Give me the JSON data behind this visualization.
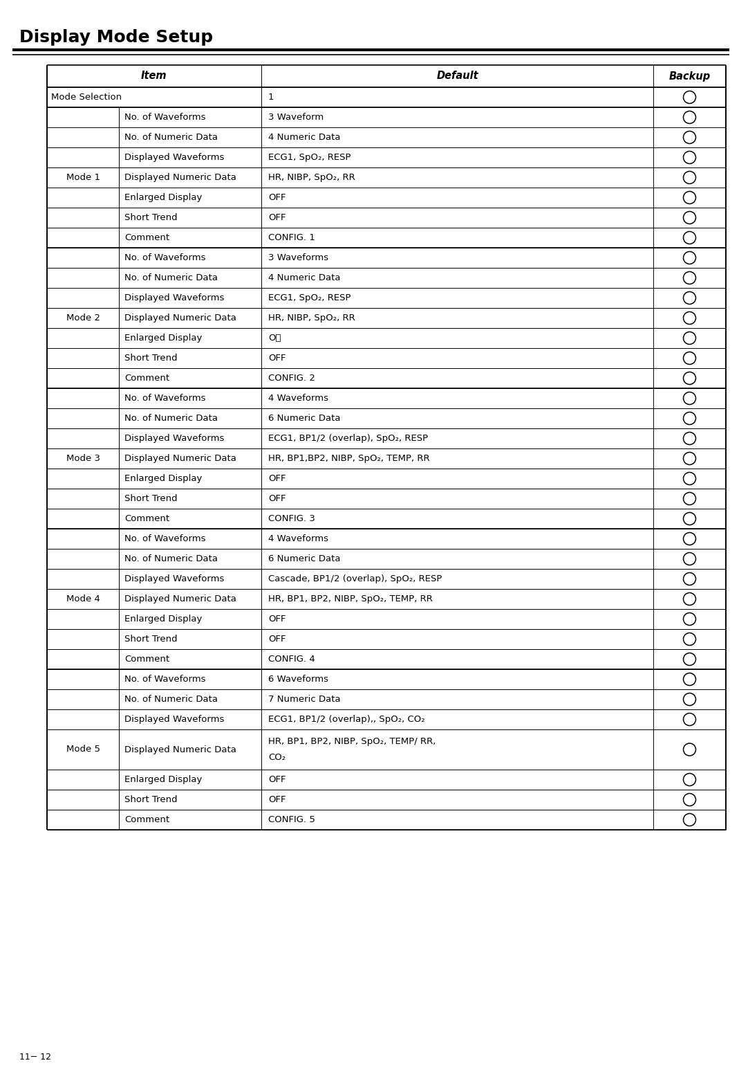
{
  "title": "Display Mode Setup",
  "page_number": "11− 12",
  "header": [
    "Item",
    "Default",
    "Backup"
  ],
  "table_data": [
    {
      "col0": "Mode Selection",
      "col1": "",
      "col2": "1",
      "span_col0": true,
      "tall_row": false
    },
    {
      "col0": "Mode 1",
      "col1": "No. of Waveforms",
      "col2": "3 Waveform",
      "span_col0": false,
      "tall_row": false
    },
    {
      "col0": "",
      "col1": "No. of Numeric Data",
      "col2": "4 Numeric Data",
      "span_col0": false,
      "tall_row": false
    },
    {
      "col0": "",
      "col1": "Displayed Waveforms",
      "col2": "ECG1, SpO₂, RESP",
      "span_col0": false,
      "tall_row": false
    },
    {
      "col0": "",
      "col1": "Displayed Numeric Data",
      "col2": "HR, NIBP, SpO₂, RR",
      "span_col0": false,
      "tall_row": false
    },
    {
      "col0": "",
      "col1": "Enlarged Display",
      "col2": "OFF",
      "span_col0": false,
      "tall_row": false
    },
    {
      "col0": "",
      "col1": "Short Trend",
      "col2": "OFF",
      "span_col0": false,
      "tall_row": false
    },
    {
      "col0": "",
      "col1": "Comment",
      "col2": "CONFIG. 1",
      "span_col0": false,
      "tall_row": false
    },
    {
      "col0": "Mode 2",
      "col1": "No. of Waveforms",
      "col2": "3 Waveforms",
      "span_col0": false,
      "tall_row": false
    },
    {
      "col0": "",
      "col1": "No. of Numeric Data",
      "col2": "4 Numeric Data",
      "span_col0": false,
      "tall_row": false
    },
    {
      "col0": "",
      "col1": "Displayed Waveforms",
      "col2": "ECG1, SpO₂, RESP",
      "span_col0": false,
      "tall_row": false
    },
    {
      "col0": "",
      "col1": "Displayed Numeric Data",
      "col2": "HR, NIBP, SpO₂, RR",
      "span_col0": false,
      "tall_row": false
    },
    {
      "col0": "",
      "col1": "Enlarged Display",
      "col2": "OＮ",
      "span_col0": false,
      "tall_row": false
    },
    {
      "col0": "",
      "col1": "Short Trend",
      "col2": "OFF",
      "span_col0": false,
      "tall_row": false
    },
    {
      "col0": "",
      "col1": "Comment",
      "col2": "CONFIG. 2",
      "span_col0": false,
      "tall_row": false
    },
    {
      "col0": "Mode 3",
      "col1": "No. of Waveforms",
      "col2": "4 Waveforms",
      "span_col0": false,
      "tall_row": false
    },
    {
      "col0": "",
      "col1": "No. of Numeric Data",
      "col2": "6 Numeric Data",
      "span_col0": false,
      "tall_row": false
    },
    {
      "col0": "",
      "col1": "Displayed Waveforms",
      "col2": "ECG1, BP1/2 (overlap), SpO₂, RESP",
      "span_col0": false,
      "tall_row": false
    },
    {
      "col0": "",
      "col1": "Displayed Numeric Data",
      "col2": "HR, BP1,BP2, NIBP, SpO₂, TEMP, RR",
      "span_col0": false,
      "tall_row": false
    },
    {
      "col0": "",
      "col1": "Enlarged Display",
      "col2": "OFF",
      "span_col0": false,
      "tall_row": false
    },
    {
      "col0": "",
      "col1": "Short Trend",
      "col2": "OFF",
      "span_col0": false,
      "tall_row": false
    },
    {
      "col0": "",
      "col1": "Comment",
      "col2": "CONFIG. 3",
      "span_col0": false,
      "tall_row": false
    },
    {
      "col0": "Mode 4",
      "col1": "No. of Waveforms",
      "col2": "4 Waveforms",
      "span_col0": false,
      "tall_row": false
    },
    {
      "col0": "",
      "col1": "No. of Numeric Data",
      "col2": "6 Numeric Data",
      "span_col0": false,
      "tall_row": false
    },
    {
      "col0": "",
      "col1": "Displayed Waveforms",
      "col2": "Cascade, BP1/2 (overlap), SpO₂, RESP",
      "span_col0": false,
      "tall_row": false
    },
    {
      "col0": "",
      "col1": "Displayed Numeric Data",
      "col2": "HR, BP1, BP2, NIBP, SpO₂, TEMP, RR",
      "span_col0": false,
      "tall_row": false
    },
    {
      "col0": "",
      "col1": "Enlarged Display",
      "col2": "OFF",
      "span_col0": false,
      "tall_row": false
    },
    {
      "col0": "",
      "col1": "Short Trend",
      "col2": "OFF",
      "span_col0": false,
      "tall_row": false
    },
    {
      "col0": "",
      "col1": "Comment",
      "col2": "CONFIG. 4",
      "span_col0": false,
      "tall_row": false
    },
    {
      "col0": "Mode 5",
      "col1": "No. of Waveforms",
      "col2": "6 Waveforms",
      "span_col0": false,
      "tall_row": false
    },
    {
      "col0": "",
      "col1": "No. of Numeric Data",
      "col2": "7 Numeric Data",
      "span_col0": false,
      "tall_row": false
    },
    {
      "col0": "",
      "col1": "Displayed Waveforms",
      "col2": "ECG1, BP1/2 (overlap),, SpO₂, CO₂",
      "span_col0": false,
      "tall_row": false
    },
    {
      "col0": "",
      "col1": "Displayed Numeric Data",
      "col2": "HR, BP1, BP2, NIBP, SpO₂, TEMP/ RR,\nCO₂",
      "span_col0": false,
      "tall_row": true
    },
    {
      "col0": "",
      "col1": "Enlarged Display",
      "col2": "OFF",
      "span_col0": false,
      "tall_row": false
    },
    {
      "col0": "",
      "col1": "Short Trend",
      "col2": "OFF",
      "span_col0": false,
      "tall_row": false
    },
    {
      "col0": "",
      "col1": "Comment",
      "col2": "CONFIG. 5",
      "span_col0": false,
      "tall_row": false
    }
  ],
  "bg_color": "#ffffff",
  "title_fontsize": 18,
  "header_fontsize": 10.5,
  "cell_fontsize": 9.5,
  "page_fontsize": 9
}
